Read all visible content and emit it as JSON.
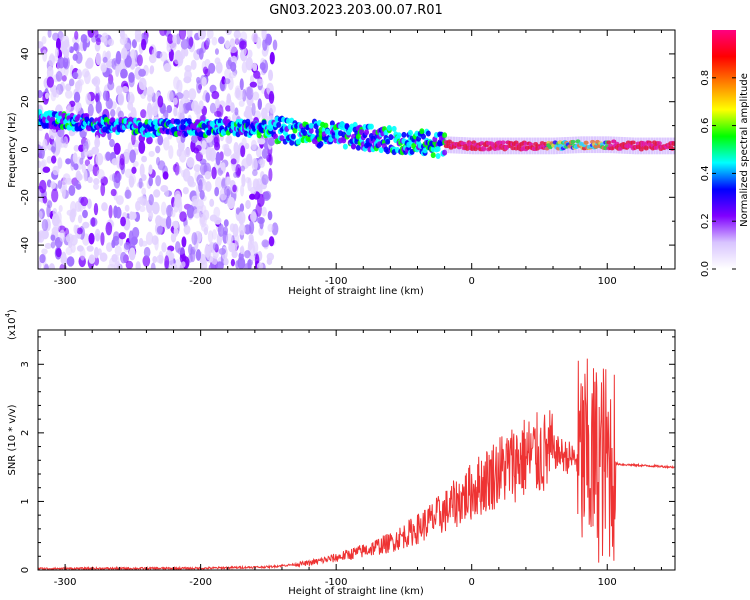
{
  "title": "GN03.2023.203.00.07.R01",
  "chart_data": [
    {
      "type": "heatmap",
      "xlabel": "Height of straight line (km)",
      "ylabel": "Frequency (Hz)",
      "xlim": [
        -320,
        150
      ],
      "ylim": [
        -50,
        50
      ],
      "xticks": [
        -300,
        -200,
        -100,
        0,
        100
      ],
      "yticks": [
        -40,
        -20,
        0,
        20,
        40
      ],
      "grid": false,
      "colorbar": {
        "label": "Normalized spectral amplitude",
        "range": [
          0.0,
          1.0
        ],
        "ticks": [
          "0.0",
          "0.2",
          "0.4",
          "0.6",
          "0.8"
        ],
        "colors": [
          "#ffffff",
          "#d8c4ff",
          "#8000ff",
          "#0000ff",
          "#00ffff",
          "#00ff00",
          "#ffff00",
          "#ff8000",
          "#ff0000",
          "#ff0080"
        ]
      },
      "ridge": {
        "x": [
          -320,
          -300,
          -280,
          -260,
          -240,
          -220,
          -200,
          -180,
          -160,
          -140,
          -120,
          -100,
          -80,
          -60,
          -40,
          -20,
          0,
          20,
          40,
          60,
          80,
          100,
          120,
          150
        ],
        "frequency": [
          13,
          12,
          11,
          10,
          9,
          9,
          9,
          9,
          9,
          8,
          7,
          6,
          5,
          4,
          3,
          2,
          1.5,
          1.5,
          1.5,
          1.5,
          2,
          2,
          1.5,
          1.5
        ]
      }
    },
    {
      "type": "line",
      "xlabel": "Height of straight line (km)",
      "ylabel": "SNR (10 * v/v)",
      "multiplier": "(x10",
      "multiplier_exp": "4",
      "xlim": [
        -320,
        150
      ],
      "ylim": [
        0,
        35000
      ],
      "xticks": [
        -300,
        -200,
        -100,
        0,
        100
      ],
      "yticks": [
        0,
        1,
        2,
        3
      ],
      "grid": false,
      "color": "#ee3333",
      "series": [
        {
          "x": [
            -320,
            -200,
            -150,
            -120,
            -100,
            -80,
            -60,
            -40,
            -20,
            0,
            20,
            40,
            50,
            60,
            65,
            70,
            80,
            90,
            100,
            105,
            110,
            130,
            150
          ],
          "values": [
            200,
            250,
            450,
            1000,
            1800,
            2800,
            4000,
            6000,
            8500,
            11500,
            14500,
            16500,
            16800,
            17200,
            17000,
            16500,
            16000,
            15800,
            15700,
            15600,
            15400,
            15200,
            15000
          ]
        }
      ]
    }
  ]
}
